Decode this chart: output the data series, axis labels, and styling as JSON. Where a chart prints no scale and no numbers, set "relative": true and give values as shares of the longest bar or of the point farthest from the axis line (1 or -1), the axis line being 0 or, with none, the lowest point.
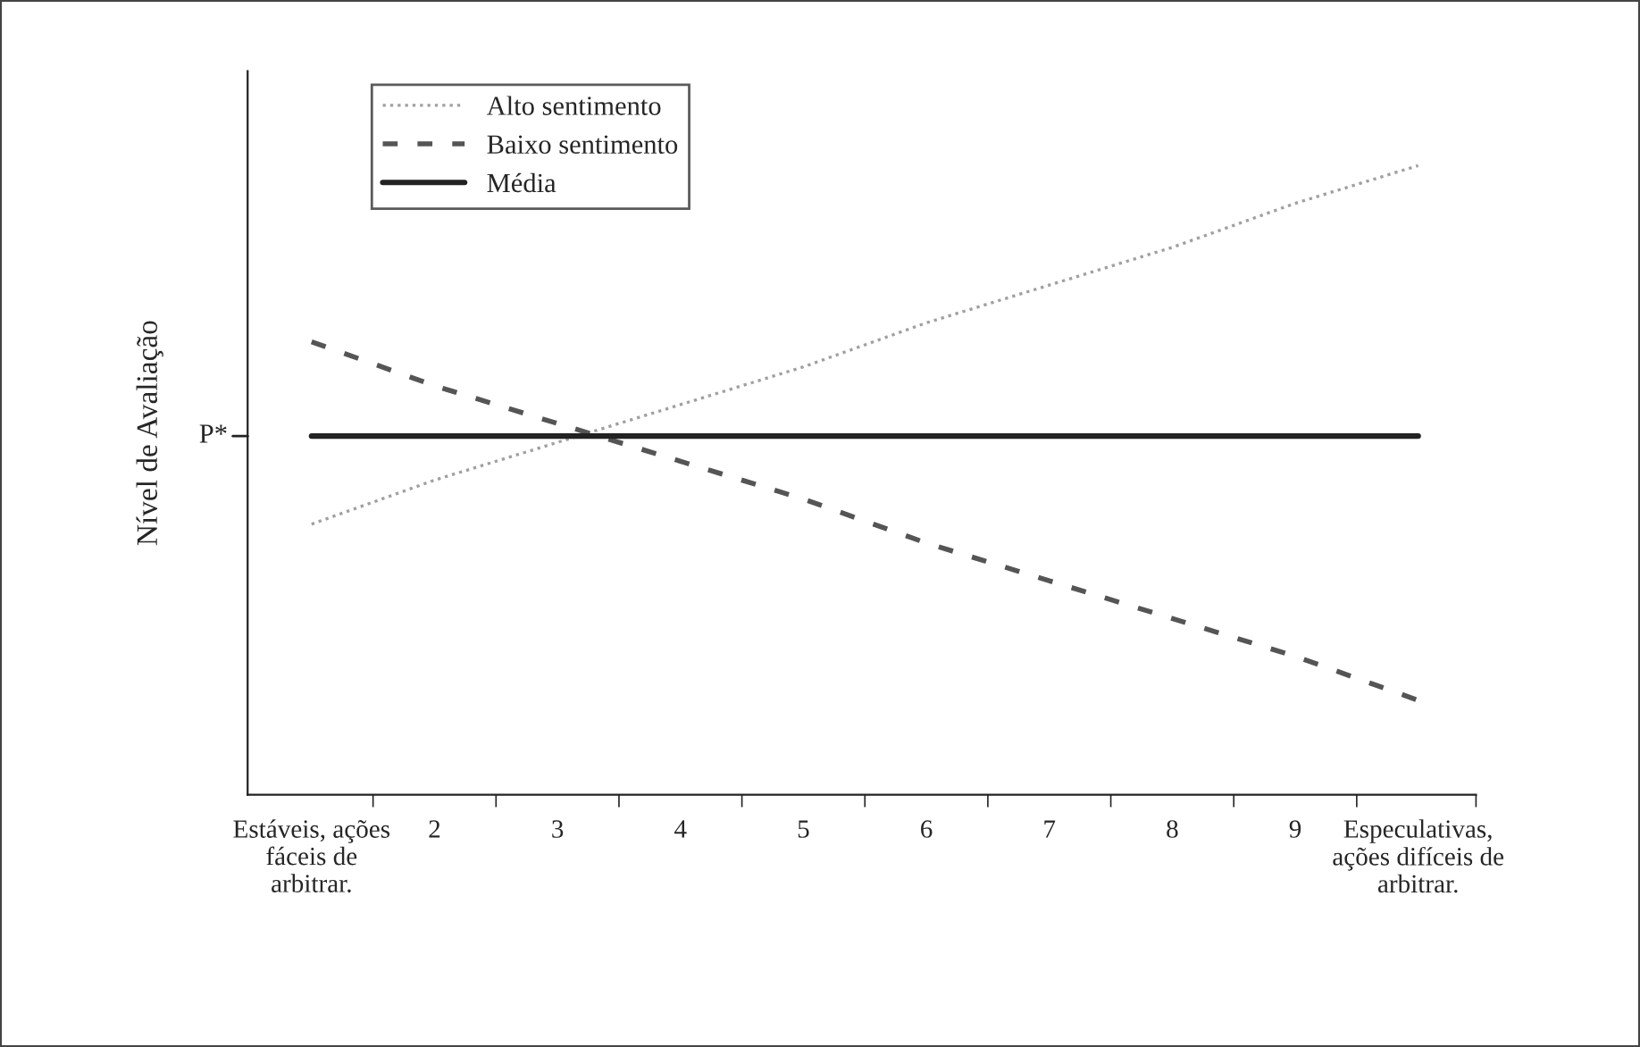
{
  "chart_data": {
    "type": "line",
    "relative": true,
    "ylabel": "Nível de Avaliação",
    "categories": [
      "Estáveis, ações\nfáceis de\narbitrar.",
      "2",
      "3",
      "4",
      "5",
      "6",
      "7",
      "8",
      "9",
      "Especulativas,\nações difíceis de\narbitrar."
    ],
    "series": [
      {
        "name": "Alto sentimento",
        "color": "#a0a0a0",
        "line_style": "dotted",
        "values": [
          0.43,
          0.5,
          0.56,
          0.62,
          0.68,
          0.75,
          0.81,
          0.87,
          0.94,
          1.0
        ]
      },
      {
        "name": "Baixo sentimento",
        "color": "#555555",
        "line_style": "dashed",
        "values": [
          0.72,
          0.65,
          0.59,
          0.53,
          0.47,
          0.4,
          0.34,
          0.28,
          0.22,
          0.15
        ]
      },
      {
        "name": "Média",
        "color": "#222222",
        "line_style": "solid",
        "values": [
          0.57,
          0.57,
          0.57,
          0.57,
          0.57,
          0.57,
          0.57,
          0.57,
          0.57,
          0.57
        ]
      }
    ],
    "annotations": [
      "P*"
    ],
    "legend": "top left",
    "grid": false,
    "marker": "none"
  }
}
